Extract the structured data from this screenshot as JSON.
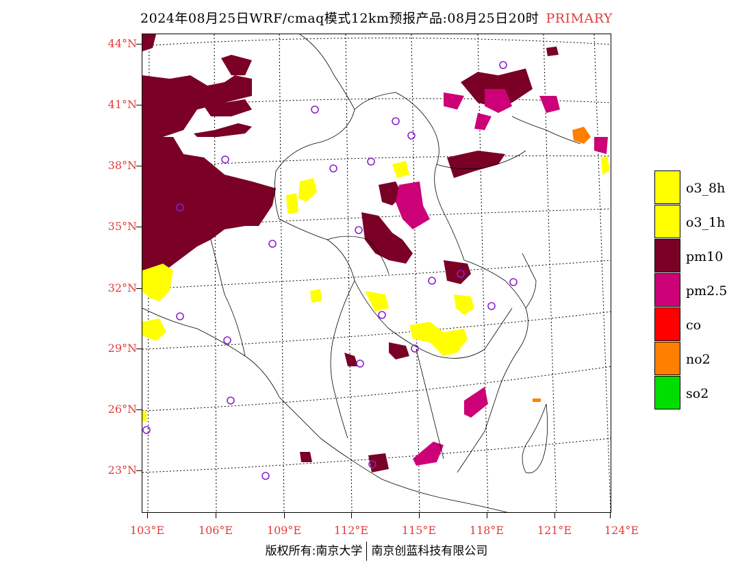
{
  "title": {
    "main": "2024年08月25日WRF/cmaq模式12km预报产品:08月25日20时",
    "tag": "PRIMARY"
  },
  "lat_labels": [
    "44°N",
    "41°N",
    "38°N",
    "35°N",
    "32°N",
    "29°N",
    "26°N",
    "23°N"
  ],
  "lon_labels": [
    "103°E",
    "106°E",
    "109°E",
    "112°E",
    "115°E",
    "118°E",
    "121°E",
    "124°E"
  ],
  "legend": [
    {
      "label": "o3_8h",
      "color": "#ffff00"
    },
    {
      "label": "o3_1h",
      "color": "#ffff00"
    },
    {
      "label": "pm10",
      "color": "#7a0026"
    },
    {
      "label": "pm2.5",
      "color": "#cc0077"
    },
    {
      "label": "co",
      "color": "#ff0000"
    },
    {
      "label": "no2",
      "color": "#ff7f00"
    },
    {
      "label": "so2",
      "color": "#00dd00"
    }
  ],
  "footer": {
    "left": "版权所有:南京大学",
    "right": "南京创蓝科技有限公司"
  }
}
